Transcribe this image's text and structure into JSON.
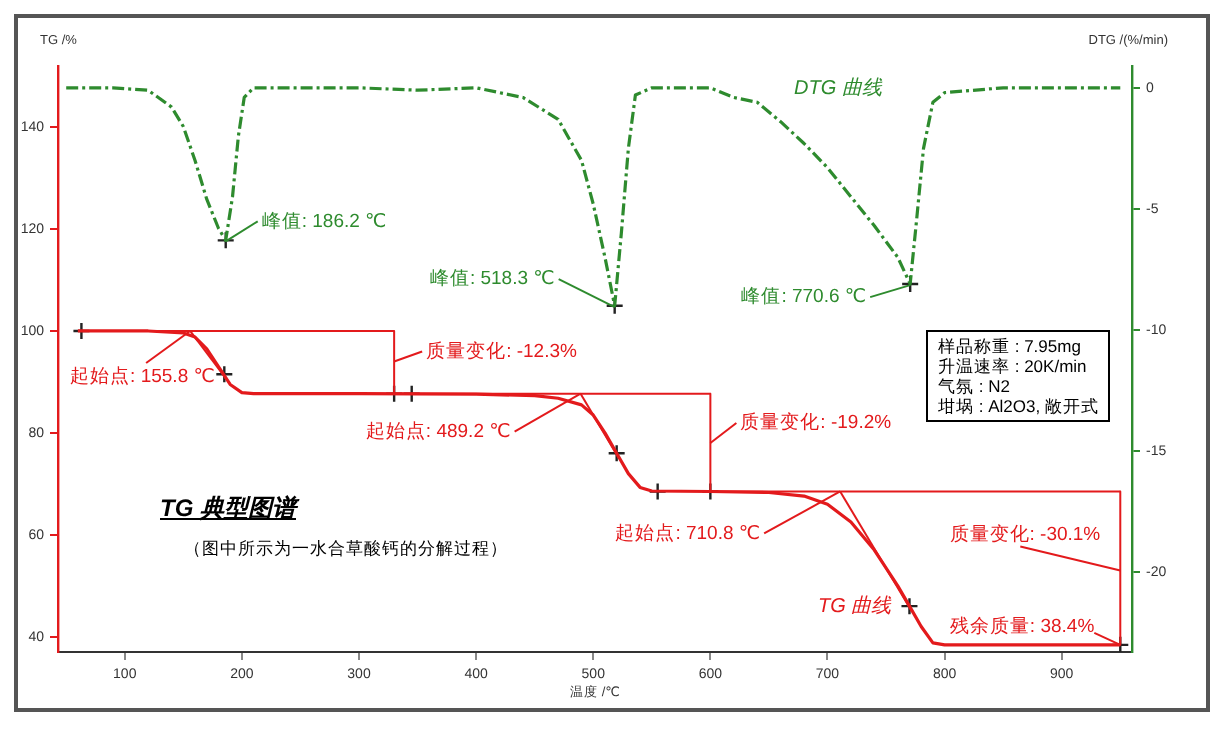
{
  "chart_data": {
    "type": "line",
    "xlabel": "温度 /℃",
    "ylabel": "TG /%",
    "y2label": "DTG /(%/min)",
    "xlim": [
      43,
      960
    ],
    "xticks": [
      100,
      200,
      300,
      400,
      500,
      600,
      700,
      800,
      900
    ],
    "ylim": [
      37,
      152
    ],
    "yticks": [
      40,
      60,
      80,
      100,
      120,
      140
    ],
    "y2lim": [
      -23.3,
      0.9
    ],
    "y2ticks": [
      0,
      -5,
      -10,
      -15,
      -20
    ],
    "grid": false,
    "legend": false,
    "series": [
      {
        "name": "TG 曲线",
        "type": "line",
        "color": "#e31a1c",
        "x": [
          60,
          120,
          150,
          160,
          170,
          180,
          190,
          200,
          210,
          300,
          400,
          450,
          470,
          490,
          500,
          510,
          520,
          530,
          540,
          550,
          600,
          650,
          680,
          700,
          720,
          740,
          760,
          770,
          780,
          790,
          800,
          950
        ],
        "values": [
          100,
          100,
          99.6,
          98.8,
          96.5,
          93,
          89.5,
          87.9,
          87.7,
          87.7,
          87.6,
          87.3,
          86.8,
          85.5,
          83.5,
          80,
          76,
          72,
          69.3,
          68.6,
          68.5,
          68.3,
          67.6,
          66,
          62.5,
          57,
          50,
          46,
          42,
          38.8,
          38.4,
          38.4
        ]
      },
      {
        "name": "DTG 曲线",
        "type": "line",
        "axis": "y2",
        "line_style": "dashed",
        "color": "#2e8b2e",
        "x": [
          50,
          90,
          120,
          140,
          150,
          160,
          170,
          180,
          186.2,
          192,
          197,
          202,
          210,
          300,
          350,
          400,
          440,
          470,
          490,
          500,
          510,
          518.3,
          524,
          530,
          536,
          550,
          600,
          620,
          640,
          660,
          680,
          700,
          720,
          740,
          760,
          770.6,
          776,
          782,
          790,
          800,
          850,
          900,
          950
        ],
        "values": [
          0,
          0,
          -0.1,
          -0.8,
          -1.6,
          -3,
          -4.6,
          -5.8,
          -6.3,
          -4.5,
          -2,
          -0.4,
          0,
          0,
          -0.1,
          0,
          -0.4,
          -1.3,
          -3,
          -4.8,
          -7,
          -9,
          -6,
          -2.5,
          -0.3,
          0,
          0,
          -0.4,
          -0.6,
          -1.4,
          -2.3,
          -3.3,
          -4.5,
          -5.7,
          -7,
          -8.1,
          -5.5,
          -2.5,
          -0.6,
          -0.2,
          0,
          0,
          0
        ]
      },
      {
        "type": "line",
        "color": "#e31a1c",
        "x": [
          60,
          330
        ],
        "values": [
          100,
          100
        ]
      },
      {
        "type": "line",
        "color": "#e31a1c",
        "x": [
          330,
          600
        ],
        "values": [
          87.7,
          87.7
        ]
      },
      {
        "type": "line",
        "color": "#e31a1c",
        "x": [
          600,
          950
        ],
        "values": [
          68.5,
          68.5
        ]
      },
      {
        "type": "line",
        "color": "#e31a1c",
        "x": [
          155.8,
          187
        ],
        "values": [
          100,
          90.5
        ]
      },
      {
        "type": "line",
        "color": "#e31a1c",
        "x": [
          489.2,
          522
        ],
        "values": [
          87.7,
          75
        ]
      },
      {
        "type": "line",
        "color": "#e31a1c",
        "x": [
          710.8,
          772
        ],
        "values": [
          68.5,
          45
        ]
      },
      {
        "type": "line",
        "color": "#e31a1c",
        "x": [
          330,
          330
        ],
        "values": [
          100,
          87.7
        ]
      },
      {
        "type": "line",
        "color": "#e31a1c",
        "x": [
          600,
          600
        ],
        "values": [
          87.7,
          68.5
        ]
      },
      {
        "type": "line",
        "color": "#e31a1c",
        "x": [
          950,
          950
        ],
        "values": [
          68.5,
          38.4
        ]
      },
      {
        "type": "scatter",
        "marker": "cross",
        "color": "#222222",
        "x": [
          63,
          185,
          330,
          345,
          520,
          555,
          600,
          770,
          950
        ],
        "values": [
          100,
          91.5,
          87.7,
          87.7,
          76,
          68.5,
          68.5,
          46,
          38.4
        ]
      },
      {
        "type": "scatter",
        "marker": "cross",
        "axis": "y2",
        "color": "#222222",
        "x": [
          186.2,
          518.3,
          770.6
        ],
        "values": [
          -6.3,
          -9,
          -8.1
        ]
      }
    ],
    "annotations": [
      {
        "text": "峰值: 186.2 ℃",
        "x": 186.2,
        "y": 117.6
      },
      {
        "text": "峰值: 518.3 ℃",
        "x": 518.3,
        "y": 104.7
      },
      {
        "text": "峰值: 770.6 ℃",
        "x": 770.6,
        "y": 109
      },
      {
        "text": "起始点: 155.8 ℃",
        "x": 155.8,
        "y": 100
      },
      {
        "text": "质量变化: -12.3%",
        "x": 330,
        "y": 94
      },
      {
        "text": "起始点: 489.2 ℃",
        "x": 489.2,
        "y": 87.7
      },
      {
        "text": "质量变化: -19.2%",
        "x": 600,
        "y": 78
      },
      {
        "text": "起始点: 710.8 ℃",
        "x": 710.8,
        "y": 68.5
      },
      {
        "text": "质量变化: -30.1%",
        "x": 950,
        "y": 53
      },
      {
        "text": "残余质量: 38.4%",
        "x": 950,
        "y": 38.4
      },
      "TG 典型图谱",
      "（图中所示为一水合草酸钙的分解过程）",
      "样品称重 : 7.95mg",
      "升温速率 : 20K/min",
      "气氛 : N2",
      "坩埚 : Al2O3, 敞开式"
    ]
  }
}
